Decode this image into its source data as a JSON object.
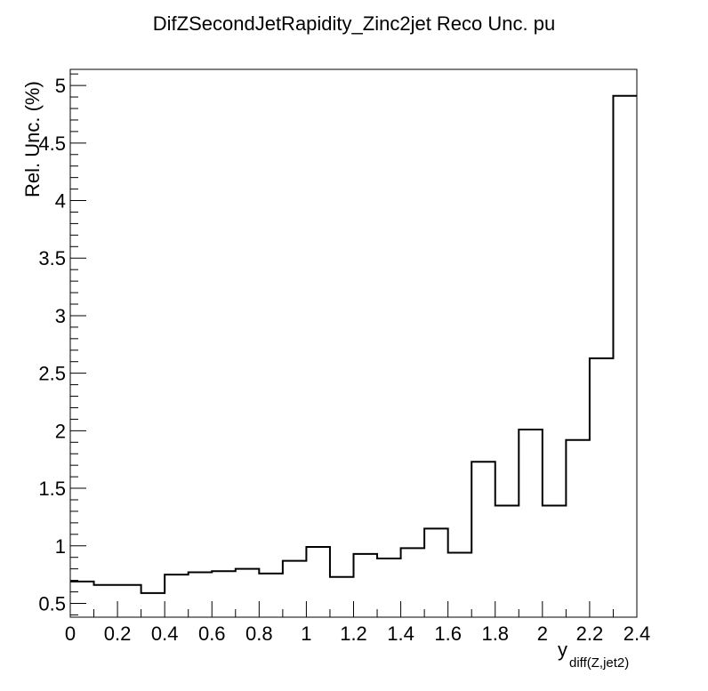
{
  "chart_data": {
    "type": "histogram",
    "title": "DifZSecondJetRapidity_Zinc2jet Reco Unc. pu",
    "xlabel_main": "y",
    "xlabel_sub": "diff(Z,jet2)",
    "ylabel": "Rel. Unc. (%)",
    "xlim": [
      0,
      2.4
    ],
    "ylim": [
      0.38,
      5.14
    ],
    "x_ticks": [
      0,
      0.2,
      0.4,
      0.6,
      0.8,
      1,
      1.2,
      1.4,
      1.6,
      1.8,
      2,
      2.2,
      2.4
    ],
    "x_tick_labels": [
      "0",
      "0.2",
      "0.4",
      "0.6",
      "0.8",
      "1",
      "1.2",
      "1.4",
      "1.6",
      "1.8",
      "2",
      "2.2",
      "2.4"
    ],
    "y_ticks": [
      0.5,
      1,
      1.5,
      2,
      2.5,
      3,
      3.5,
      4,
      4.5,
      5
    ],
    "y_tick_labels": [
      "0.5",
      "1",
      "1.5",
      "2",
      "2.5",
      "3",
      "3.5",
      "4",
      "4.5",
      "5"
    ],
    "grid": false,
    "legend": "none",
    "line_color": "#000000",
    "bin_edges": [
      0,
      0.1,
      0.2,
      0.3,
      0.4,
      0.5,
      0.6,
      0.7,
      0.8,
      0.9,
      1.0,
      1.1,
      1.2,
      1.3,
      1.4,
      1.5,
      1.6,
      1.7,
      1.8,
      1.9,
      2.0,
      2.1,
      2.2,
      2.3,
      2.4
    ],
    "values": [
      0.69,
      0.66,
      0.66,
      0.59,
      0.75,
      0.77,
      0.78,
      0.8,
      0.76,
      0.87,
      0.99,
      0.73,
      0.93,
      0.89,
      0.98,
      1.15,
      0.94,
      1.73,
      1.35,
      2.01,
      1.35,
      1.92,
      2.63,
      4.91
    ]
  }
}
